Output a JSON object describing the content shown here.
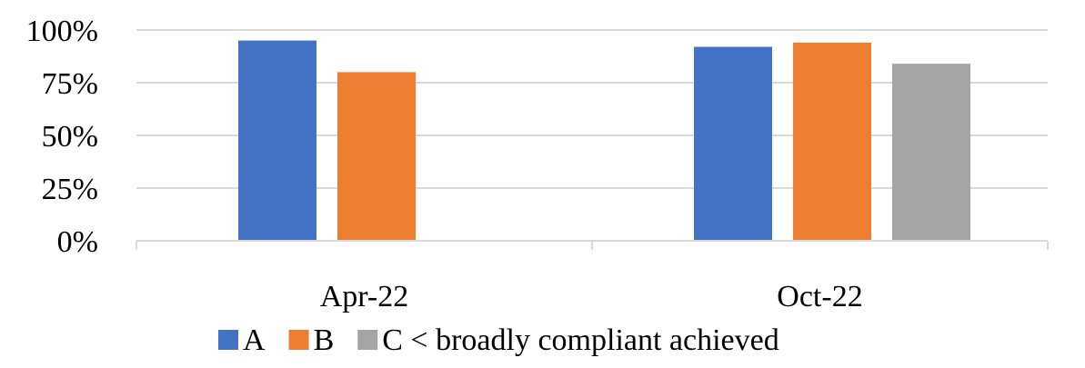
{
  "chart_data": {
    "type": "bar",
    "categories": [
      "Apr-22",
      "Oct-22"
    ],
    "series": [
      {
        "name": "A",
        "color": "#4472C4",
        "values": [
          95,
          92
        ]
      },
      {
        "name": "B",
        "color": "#ED7D31",
        "values": [
          80,
          94
        ]
      },
      {
        "name": "C < broadly compliant achieved",
        "color": "#A5A5A5",
        "values": [
          null,
          84
        ]
      }
    ],
    "y_ticks": [
      "0%",
      "25%",
      "50%",
      "75%",
      "100%"
    ],
    "ylim": [
      0,
      100
    ],
    "grid": true,
    "legend_position": "bottom"
  }
}
